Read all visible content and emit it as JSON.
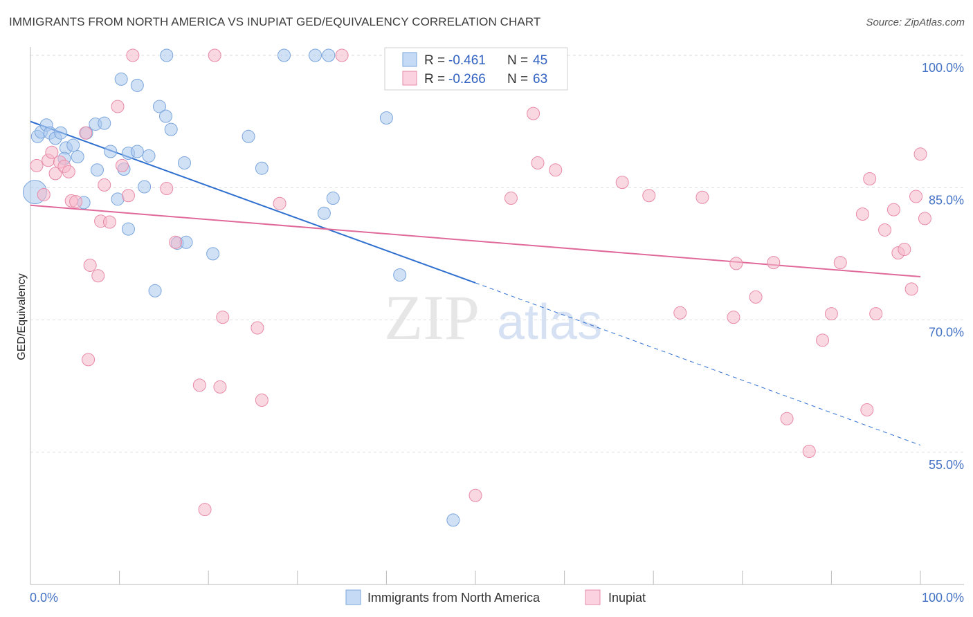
{
  "title": "IMMIGRANTS FROM NORTH AMERICA VS INUPIAT GED/EQUIVALENCY CORRELATION CHART",
  "source": "Source: ZipAtlas.com",
  "watermark": {
    "zip": "ZIP",
    "atlas": "atlas"
  },
  "legend": [
    {
      "r_label": "R =",
      "r_value": "-0.461",
      "n_label": "N =",
      "n_value": "45",
      "color": "#a9c8ef"
    },
    {
      "r_label": "R =",
      "r_value": "-0.266",
      "n_label": "N =",
      "n_value": "63",
      "color": "#f5b8cb"
    }
  ],
  "bottom_legend": [
    "Immigrants from North America",
    "Inupiat"
  ],
  "chart_data": {
    "type": "scatter",
    "title": "IMMIGRANTS FROM NORTH AMERICA VS INUPIAT GED/EQUIVALENCY CORRELATION CHART",
    "xlabel": "",
    "ylabel": "GED/Equivalency",
    "xlim": [
      0,
      100
    ],
    "ylim": [
      40,
      100
    ],
    "x_ticks": [
      "0.0%",
      "100.0%"
    ],
    "y_ticks": [
      {
        "value": 100,
        "label": "100.0%"
      },
      {
        "value": 85,
        "label": "85.0%"
      },
      {
        "value": 70,
        "label": "70.0%"
      },
      {
        "value": 55,
        "label": "55.0%"
      }
    ],
    "grid": true,
    "series": [
      {
        "name": "Immigrants from North America",
        "color": "#a9c8ef",
        "stroke": "#7aa5dc",
        "trend_color": "#2f6fd0",
        "trend": {
          "x0": 0,
          "y0": 92.5,
          "x1": 50,
          "y1": 74.2,
          "dash_to_x": 100,
          "dash_to_y": 55.8
        },
        "points": [
          [
            0.5,
            84.5
          ],
          [
            0.8,
            90.8
          ],
          [
            1.2,
            91.3
          ],
          [
            1.8,
            92.1
          ],
          [
            2.2,
            91.2
          ],
          [
            2.8,
            90.6
          ],
          [
            3.4,
            91.2
          ],
          [
            4.0,
            89.5
          ],
          [
            4.8,
            89.8
          ],
          [
            5.3,
            88.5
          ],
          [
            3.8,
            88.3
          ],
          [
            6.0,
            83.3
          ],
          [
            6.3,
            91.2
          ],
          [
            7.3,
            92.2
          ],
          [
            8.3,
            92.3
          ],
          [
            9.0,
            89.1
          ],
          [
            9.8,
            83.7
          ],
          [
            10.2,
            97.3
          ],
          [
            11.0,
            80.3
          ],
          [
            7.5,
            87.0
          ],
          [
            10.5,
            87.1
          ],
          [
            11.0,
            88.9
          ],
          [
            12.0,
            96.6
          ],
          [
            12.0,
            89.1
          ],
          [
            12.8,
            85.1
          ],
          [
            13.3,
            88.6
          ],
          [
            14.0,
            73.3
          ],
          [
            14.5,
            94.2
          ],
          [
            15.2,
            93.1
          ],
          [
            15.3,
            100.0
          ],
          [
            15.8,
            91.6
          ],
          [
            16.5,
            78.7
          ],
          [
            17.3,
            87.8
          ],
          [
            17.5,
            78.8
          ],
          [
            20.5,
            77.5
          ],
          [
            24.5,
            90.8
          ],
          [
            26.0,
            87.2
          ],
          [
            28.5,
            100.0
          ],
          [
            32.0,
            100.0
          ],
          [
            33.5,
            100.0
          ],
          [
            33.0,
            82.1
          ],
          [
            34.0,
            83.8
          ],
          [
            40.0,
            92.9
          ],
          [
            41.5,
            75.1
          ],
          [
            47.5,
            47.3
          ]
        ]
      },
      {
        "name": "Inupiat",
        "color": "#f5b8cb",
        "stroke": "#e88aa8",
        "trend_color": "#e0699a",
        "trend": {
          "x0": 0,
          "y0": 83.0,
          "x1": 100,
          "y1": 74.9
        },
        "points": [
          [
            0.7,
            87.5
          ],
          [
            1.5,
            84.2
          ],
          [
            2.0,
            88.1
          ],
          [
            2.4,
            89.0
          ],
          [
            2.8,
            86.6
          ],
          [
            3.3,
            87.9
          ],
          [
            3.8,
            87.4
          ],
          [
            4.3,
            86.8
          ],
          [
            4.6,
            83.5
          ],
          [
            5.1,
            83.4
          ],
          [
            6.2,
            91.2
          ],
          [
            6.5,
            65.5
          ],
          [
            6.7,
            76.2
          ],
          [
            7.6,
            75.0
          ],
          [
            7.9,
            81.2
          ],
          [
            8.3,
            85.3
          ],
          [
            8.9,
            81.1
          ],
          [
            9.8,
            94.2
          ],
          [
            10.3,
            87.5
          ],
          [
            11.0,
            84.1
          ],
          [
            11.5,
            100.0
          ],
          [
            15.3,
            84.9
          ],
          [
            16.3,
            78.8
          ],
          [
            19.0,
            62.6
          ],
          [
            19.6,
            48.5
          ],
          [
            20.7,
            100.0
          ],
          [
            21.3,
            62.4
          ],
          [
            21.6,
            70.3
          ],
          [
            25.5,
            69.1
          ],
          [
            26.0,
            60.9
          ],
          [
            28.0,
            83.2
          ],
          [
            35.0,
            100.0
          ],
          [
            47.5,
            100.0
          ],
          [
            50.0,
            50.1
          ],
          [
            54.0,
            83.8
          ],
          [
            56.5,
            93.4
          ],
          [
            57.0,
            87.8
          ],
          [
            59.0,
            87.0
          ],
          [
            66.5,
            85.6
          ],
          [
            69.5,
            84.1
          ],
          [
            73.0,
            70.8
          ],
          [
            75.5,
            83.9
          ],
          [
            79.0,
            70.3
          ],
          [
            79.3,
            76.4
          ],
          [
            81.5,
            72.6
          ],
          [
            83.5,
            76.5
          ],
          [
            85.0,
            58.8
          ],
          [
            87.5,
            55.1
          ],
          [
            89.0,
            67.7
          ],
          [
            90.0,
            70.7
          ],
          [
            91.0,
            76.5
          ],
          [
            93.5,
            82.0
          ],
          [
            94.0,
            59.8
          ],
          [
            94.3,
            86.0
          ],
          [
            95.0,
            70.7
          ],
          [
            97.0,
            82.5
          ],
          [
            96.0,
            80.2
          ],
          [
            97.5,
            77.6
          ],
          [
            98.2,
            78.0
          ],
          [
            99.0,
            73.5
          ],
          [
            100.0,
            88.8
          ],
          [
            100.5,
            81.5
          ],
          [
            99.5,
            84.0
          ]
        ]
      }
    ]
  }
}
